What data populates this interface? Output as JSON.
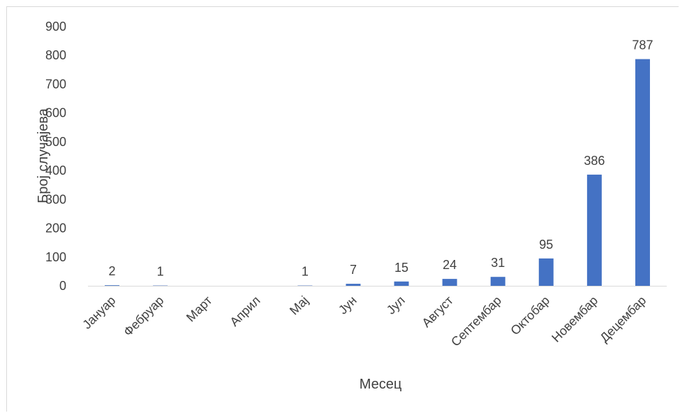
{
  "chart_data": {
    "type": "bar",
    "title": "",
    "xlabel": "Месец",
    "ylabel": "Број случајева",
    "ylim": [
      0,
      900
    ],
    "yticks": [
      0,
      100,
      200,
      300,
      400,
      500,
      600,
      700,
      800,
      900
    ],
    "grid": false,
    "legend": "none",
    "categories": [
      "Јануар",
      "Фебруар",
      "Март",
      "Април",
      "Мај",
      "Јун",
      "Јул",
      "Август",
      "Септембар",
      "Октобар",
      "Новембар",
      "Децембар"
    ],
    "values": [
      2,
      1,
      0,
      0,
      1,
      7,
      15,
      24,
      31,
      95,
      386,
      787
    ],
    "data_labels": [
      "2",
      "1",
      "",
      "",
      "1",
      "7",
      "15",
      "24",
      "31",
      "95",
      "386",
      "787"
    ],
    "bar_color": "#4472c4",
    "text_color": "#404040",
    "axis_color": "#d9d9d9"
  }
}
